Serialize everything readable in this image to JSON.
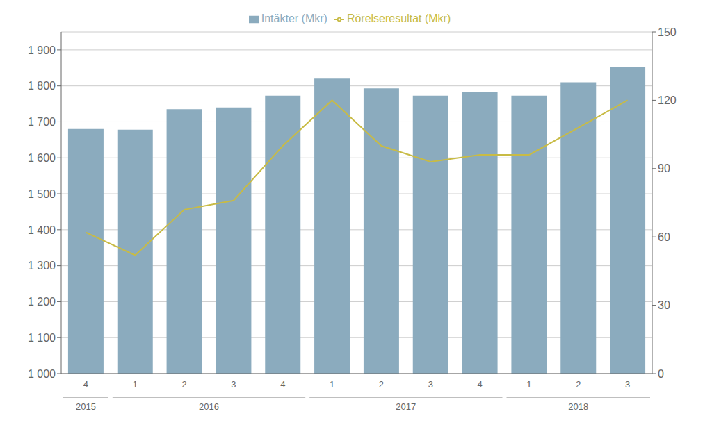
{
  "chart_data": {
    "type": "bar",
    "categories": [
      "4",
      "1",
      "2",
      "3",
      "4",
      "1",
      "2",
      "3",
      "4",
      "1",
      "2",
      "3"
    ],
    "year_groups": [
      {
        "label": "2015",
        "span": [
          0,
          0
        ]
      },
      {
        "label": "2016",
        "span": [
          1,
          4
        ]
      },
      {
        "label": "2017",
        "span": [
          5,
          8
        ]
      },
      {
        "label": "2018",
        "span": [
          9,
          11
        ]
      }
    ],
    "series": [
      {
        "name": "Intäkter (Mkr)",
        "type": "bar",
        "color": "#8BABBE",
        "values": [
          1680,
          1678,
          1735,
          1740,
          1773,
          1820,
          1793,
          1773,
          1783,
          1773,
          1810,
          1852
        ]
      },
      {
        "name": "Rörelseresultat (Mkr)",
        "type": "line",
        "axis": "y2",
        "color": "#C8BB45",
        "values": [
          62,
          52,
          72,
          76,
          100,
          120,
          100,
          93,
          96,
          96,
          108,
          120
        ]
      }
    ],
    "ylim": [
      1000,
      1950
    ],
    "yticks": [
      {
        "value": 1000,
        "label": "1 000"
      },
      {
        "value": 1100,
        "label": "1 100"
      },
      {
        "value": 1200,
        "label": "1 200"
      },
      {
        "value": 1300,
        "label": "1 300"
      },
      {
        "value": 1400,
        "label": "1 400"
      },
      {
        "value": 1500,
        "label": "1 500"
      },
      {
        "value": 1600,
        "label": "1 600"
      },
      {
        "value": 1700,
        "label": "1 700"
      },
      {
        "value": 1800,
        "label": "1 800"
      },
      {
        "value": 1900,
        "label": "1 900"
      }
    ],
    "y2lim": [
      0,
      150
    ],
    "y2ticks": [
      0,
      30,
      60,
      90,
      120,
      150
    ],
    "grid": true,
    "legend": "top"
  }
}
